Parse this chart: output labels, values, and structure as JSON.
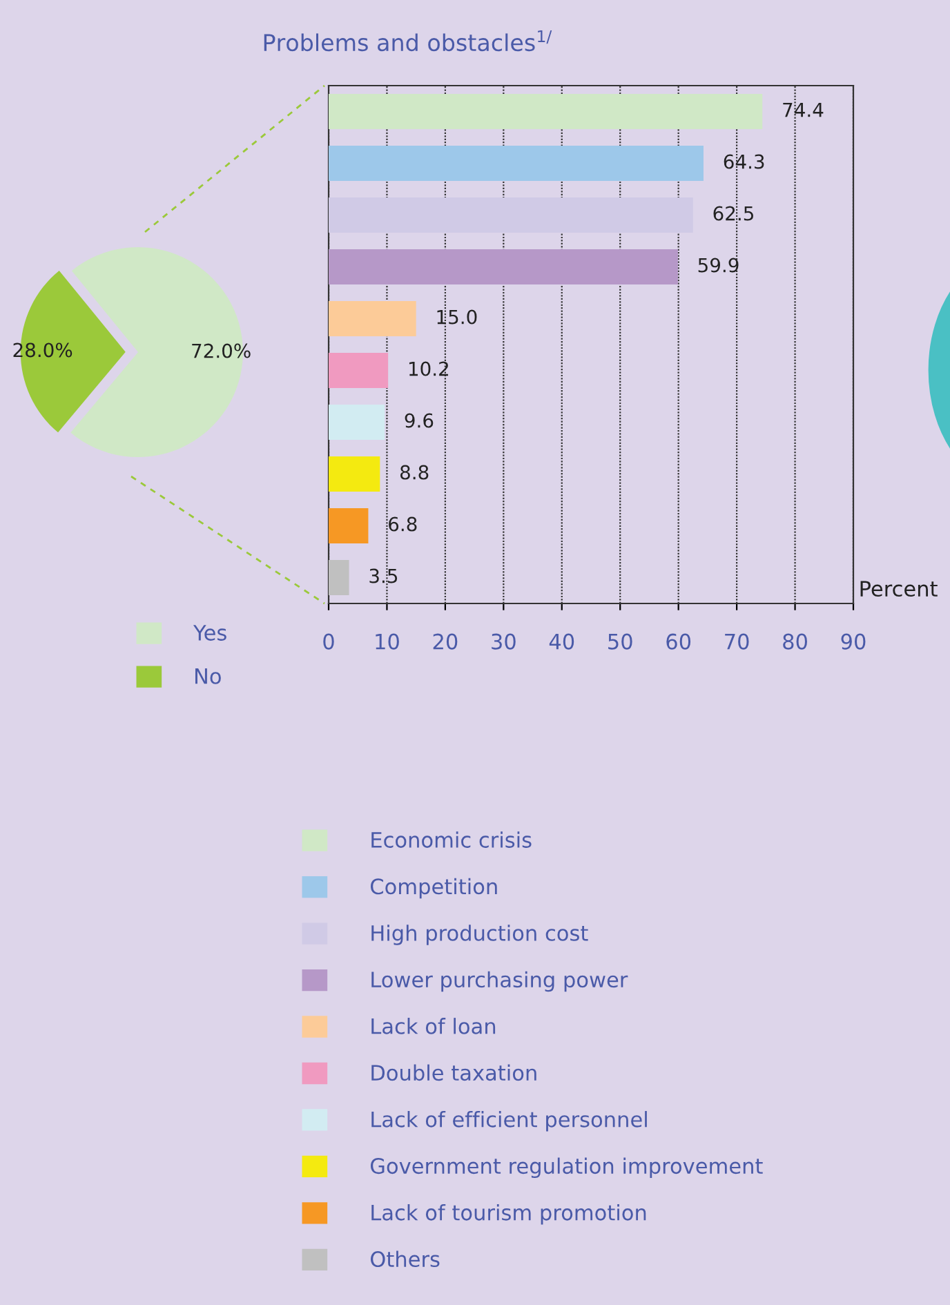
{
  "chart_data": [
    {
      "type": "pie",
      "categories": [
        "Yes",
        "No"
      ],
      "values": [
        72.0,
        28.0
      ],
      "colors": [
        "#d0e8c6",
        "#9bc93a"
      ],
      "value_labels": [
        "72.0%",
        "28.0%"
      ],
      "legend": "bottom"
    },
    {
      "type": "bar",
      "orientation": "horizontal",
      "title": "Problems and obstacles$^{1/}$",
      "xlabel": "Percent",
      "categories": [
        null,
        null,
        null,
        null,
        null,
        null,
        null,
        null,
        null,
        null
      ],
      "series": [
        {
          "name": "Economic crisis",
          "color": "#d0e8c6",
          "values": [
            74.4,
            null,
            null,
            null,
            null,
            null,
            null,
            null,
            null,
            null
          ],
          "value_labels": [
            "74.4",
            null,
            null,
            null,
            null,
            null,
            null,
            null,
            null,
            null
          ]
        },
        {
          "name": "Competition",
          "color": "#9dc8ea",
          "values": [
            null,
            64.3,
            null,
            null,
            null,
            null,
            null,
            null,
            null,
            null
          ],
          "value_labels": [
            null,
            "64.3",
            null,
            null,
            null,
            null,
            null,
            null,
            null,
            null
          ]
        },
        {
          "name": "High production cost",
          "color": "#d0cae6",
          "values": [
            null,
            null,
            62.5,
            null,
            null,
            null,
            null,
            null,
            null,
            null
          ],
          "value_labels": [
            null,
            null,
            "62.5",
            null,
            null,
            null,
            null,
            null,
            null,
            null
          ]
        },
        {
          "name": "Lower purchasing power",
          "color": "#b698c8",
          "values": [
            null,
            null,
            null,
            59.9,
            null,
            null,
            null,
            null,
            null,
            null
          ],
          "value_labels": [
            null,
            null,
            null,
            "59.9",
            null,
            null,
            null,
            null,
            null,
            null
          ]
        },
        {
          "name": "Lack of loan",
          "color": "#fccb98",
          "values": [
            null,
            null,
            null,
            null,
            15.0,
            null,
            null,
            null,
            null,
            null
          ],
          "value_labels": [
            null,
            null,
            null,
            null,
            "15.0",
            null,
            null,
            null,
            null,
            null
          ]
        },
        {
          "name": "Double taxation",
          "color": "#f09ac0",
          "values": [
            null,
            null,
            null,
            null,
            null,
            10.2,
            null,
            null,
            null,
            null
          ],
          "value_labels": [
            null,
            null,
            null,
            null,
            null,
            "10.2",
            null,
            null,
            null,
            null
          ]
        },
        {
          "name": "Lack of efficient personnel",
          "color": "#d2ecf2",
          "values": [
            null,
            null,
            null,
            null,
            null,
            null,
            9.6,
            null,
            null,
            null
          ],
          "value_labels": [
            null,
            null,
            null,
            null,
            null,
            null,
            "9.6",
            null,
            null,
            null
          ]
        },
        {
          "name": "Government regulation improvement",
          "color": "#f4ea10",
          "values": [
            null,
            null,
            null,
            null,
            null,
            null,
            null,
            8.8,
            null,
            null
          ],
          "value_labels": [
            null,
            null,
            null,
            null,
            null,
            null,
            null,
            "8.8",
            null,
            null
          ]
        },
        {
          "name": "Lack of tourism promotion",
          "color": "#f69824",
          "values": [
            null,
            null,
            null,
            null,
            null,
            null,
            null,
            null,
            6.8,
            null
          ],
          "value_labels": [
            null,
            null,
            null,
            null,
            null,
            null,
            null,
            null,
            "6.8",
            null
          ]
        },
        {
          "name": "Others",
          "color": "#c0c0c0",
          "values": [
            null,
            null,
            null,
            null,
            null,
            null,
            null,
            null,
            null,
            3.5
          ],
          "value_labels": [
            null,
            null,
            null,
            null,
            null,
            null,
            null,
            null,
            null,
            "3.5"
          ]
        }
      ],
      "xlim": [
        0,
        90
      ],
      "xticks": [
        0,
        10,
        20,
        30,
        40,
        50,
        60,
        70,
        80,
        90
      ],
      "grid": "x",
      "tick_labels": "x",
      "legend": "bottom"
    }
  ]
}
